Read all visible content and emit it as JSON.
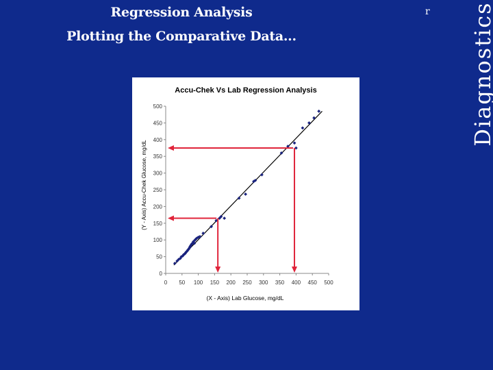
{
  "slide": {
    "title": "Regression Analysis",
    "subtitle": "Plotting the Comparative Data...",
    "corner_mark": "r",
    "side_label": "Diagnostics",
    "background_color": "#0f2a8c"
  },
  "chart_data": {
    "type": "scatter",
    "title": "Accu-Chek Vs Lab Regression Analysis",
    "xlabel": "(X - Axis) Lab Glucose, mg/dL",
    "ylabel": "(Y - Axis) Accu-Chek Glucose, mg/dL",
    "xlim": [
      0,
      500
    ],
    "ylim": [
      0,
      500
    ],
    "xticks": [
      0,
      50,
      100,
      150,
      200,
      250,
      300,
      350,
      400,
      450,
      500
    ],
    "yticks": [
      0,
      50,
      100,
      150,
      200,
      250,
      300,
      350,
      400,
      450,
      500
    ],
    "grid": false,
    "legend": "none",
    "marker_color": "#1a237e",
    "line_color": "#000000",
    "arrow_color": "#e0243a",
    "regression_line": {
      "x": [
        25,
        480
      ],
      "y": [
        25,
        485
      ]
    },
    "series": [
      {
        "x": [
          28,
          35,
          40,
          45,
          48,
          52,
          55,
          58,
          60,
          62,
          64,
          66,
          68,
          70,
          72,
          74,
          75,
          76,
          78,
          80,
          82,
          84,
          85,
          88,
          90,
          92,
          95,
          100,
          105,
          115,
          140,
          155,
          165,
          170,
          180,
          225,
          245,
          270,
          275,
          295,
          355,
          375,
          395,
          400,
          420,
          440,
          455,
          470
        ],
        "y": [
          30,
          37,
          42,
          45,
          50,
          52,
          56,
          58,
          60,
          63,
          65,
          67,
          70,
          72,
          75,
          78,
          80,
          82,
          85,
          88,
          90,
          92,
          95,
          90,
          100,
          102,
          105,
          108,
          110,
          120,
          140,
          158,
          165,
          170,
          165,
          225,
          237,
          275,
          278,
          295,
          360,
          380,
          390,
          375,
          435,
          450,
          465,
          485
        ]
      }
    ],
    "reference_arrows": [
      {
        "x": 160,
        "y": 165
      },
      {
        "x": 395,
        "y": 375
      }
    ]
  }
}
